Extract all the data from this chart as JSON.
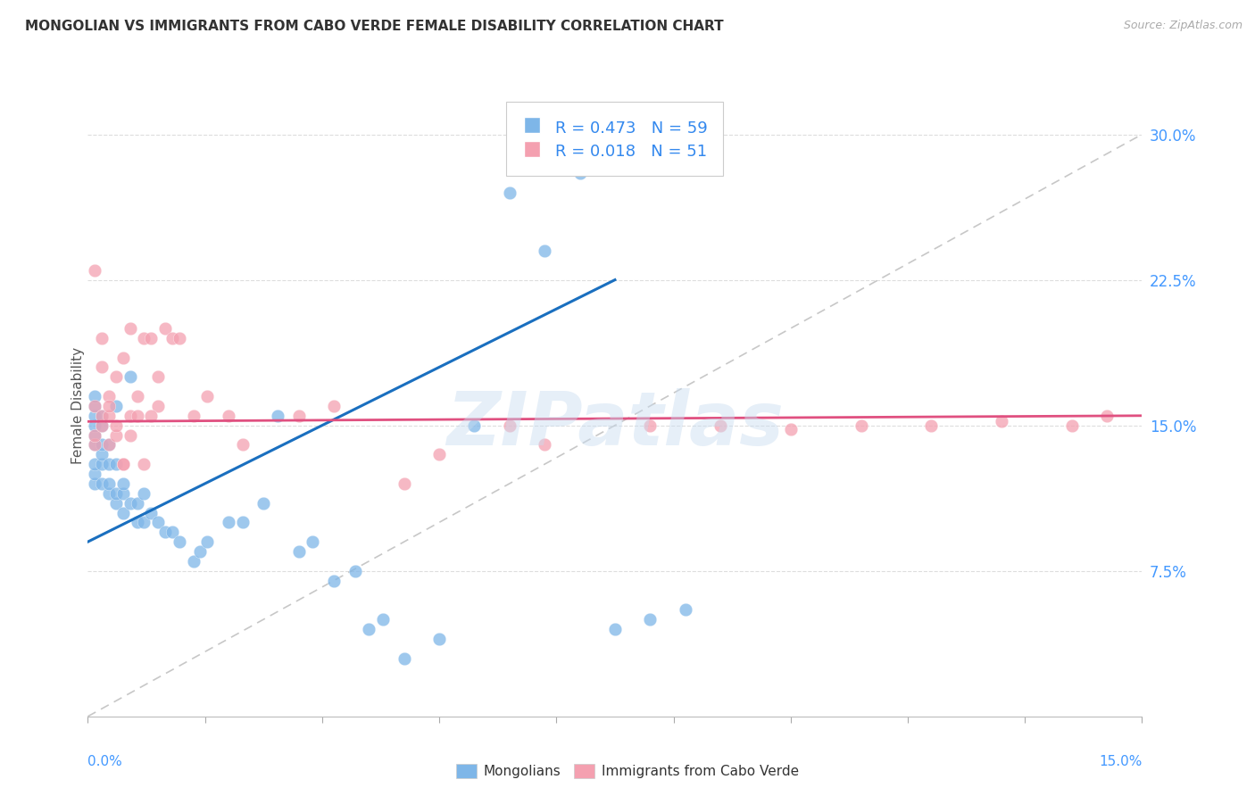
{
  "title": "MONGOLIAN VS IMMIGRANTS FROM CABO VERDE FEMALE DISABILITY CORRELATION CHART",
  "source": "Source: ZipAtlas.com",
  "ylabel": "Female Disability",
  "right_yticks": [
    "30.0%",
    "22.5%",
    "15.0%",
    "7.5%"
  ],
  "right_ytick_vals": [
    0.3,
    0.225,
    0.15,
    0.075
  ],
  "xmin": 0.0,
  "xmax": 0.15,
  "ymin": 0.0,
  "ymax": 0.32,
  "mongolian_color": "#7EB6E8",
  "cabo_verde_color": "#F4A0B0",
  "mongolian_line_color": "#1A6FBF",
  "cabo_verde_line_color": "#E05080",
  "dashed_line_color": "#AAAAAA",
  "watermark": "ZIPatlas",
  "mongolian_points_x": [
    0.001,
    0.001,
    0.001,
    0.001,
    0.001,
    0.001,
    0.001,
    0.001,
    0.001,
    0.002,
    0.002,
    0.002,
    0.002,
    0.002,
    0.002,
    0.003,
    0.003,
    0.003,
    0.003,
    0.004,
    0.004,
    0.004,
    0.004,
    0.005,
    0.005,
    0.005,
    0.006,
    0.006,
    0.007,
    0.007,
    0.008,
    0.008,
    0.009,
    0.01,
    0.011,
    0.012,
    0.013,
    0.015,
    0.016,
    0.017,
    0.02,
    0.022,
    0.025,
    0.027,
    0.03,
    0.032,
    0.035,
    0.038,
    0.04,
    0.042,
    0.045,
    0.05,
    0.055,
    0.06,
    0.065,
    0.07,
    0.075,
    0.08,
    0.085
  ],
  "mongolian_points_y": [
    0.12,
    0.125,
    0.13,
    0.14,
    0.145,
    0.15,
    0.155,
    0.16,
    0.165,
    0.12,
    0.13,
    0.135,
    0.14,
    0.15,
    0.155,
    0.115,
    0.12,
    0.13,
    0.14,
    0.11,
    0.115,
    0.13,
    0.16,
    0.105,
    0.115,
    0.12,
    0.11,
    0.175,
    0.1,
    0.11,
    0.1,
    0.115,
    0.105,
    0.1,
    0.095,
    0.095,
    0.09,
    0.08,
    0.085,
    0.09,
    0.1,
    0.1,
    0.11,
    0.155,
    0.085,
    0.09,
    0.07,
    0.075,
    0.045,
    0.05,
    0.03,
    0.04,
    0.15,
    0.27,
    0.24,
    0.28,
    0.045,
    0.05,
    0.055
  ],
  "cabo_verde_points_x": [
    0.001,
    0.001,
    0.001,
    0.001,
    0.002,
    0.002,
    0.002,
    0.003,
    0.003,
    0.003,
    0.004,
    0.004,
    0.005,
    0.005,
    0.006,
    0.006,
    0.007,
    0.008,
    0.009,
    0.01,
    0.011,
    0.012,
    0.013,
    0.015,
    0.017,
    0.02,
    0.022,
    0.03,
    0.035,
    0.045,
    0.05,
    0.06,
    0.065,
    0.08,
    0.09,
    0.1,
    0.11,
    0.12,
    0.13,
    0.14,
    0.145,
    0.002,
    0.003,
    0.004,
    0.005,
    0.006,
    0.007,
    0.008,
    0.009,
    0.01
  ],
  "cabo_verde_points_y": [
    0.14,
    0.145,
    0.16,
    0.23,
    0.15,
    0.155,
    0.195,
    0.14,
    0.155,
    0.165,
    0.145,
    0.175,
    0.13,
    0.185,
    0.155,
    0.2,
    0.165,
    0.195,
    0.195,
    0.16,
    0.2,
    0.195,
    0.195,
    0.155,
    0.165,
    0.155,
    0.14,
    0.155,
    0.16,
    0.12,
    0.135,
    0.15,
    0.14,
    0.15,
    0.15,
    0.148,
    0.15,
    0.15,
    0.152,
    0.15,
    0.155,
    0.18,
    0.16,
    0.15,
    0.13,
    0.145,
    0.155,
    0.13,
    0.155,
    0.175
  ]
}
